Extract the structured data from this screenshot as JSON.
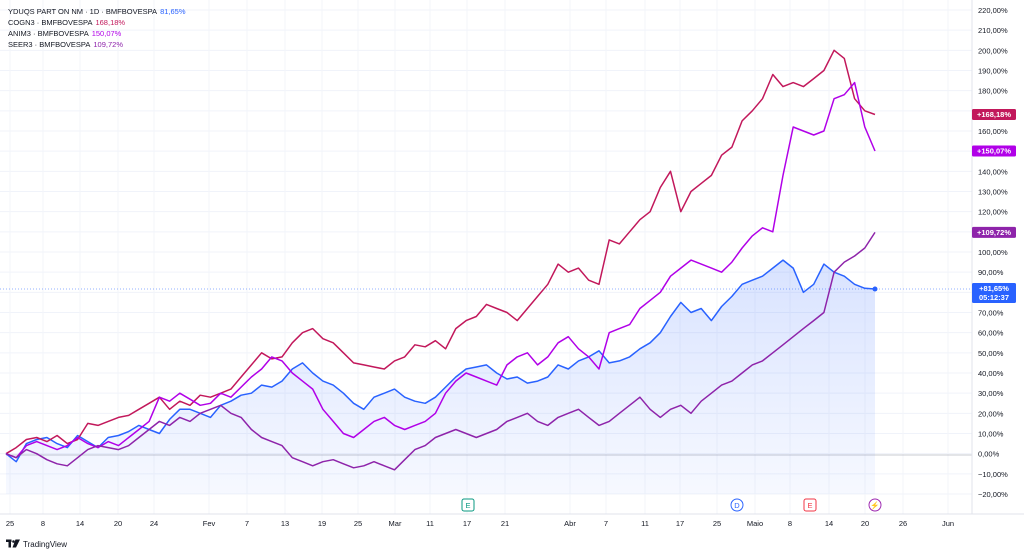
{
  "legend": [
    {
      "symbol": "YDUQS PART ON NM · 1D · BMFBOVESPA",
      "value": "81,65%",
      "color": "#2962ff"
    },
    {
      "symbol": "COGN3 · BMFBOVESPA",
      "value": "168,18%",
      "color": "#c2185b"
    },
    {
      "symbol": "ANIM3 · BMFBOVESPA",
      "value": "150,07%",
      "color": "#b100e8"
    },
    {
      "symbol": "SEER3 · BMFBOVESPA",
      "value": "109,72%",
      "color": "#8e24aa"
    }
  ],
  "price_tags": [
    {
      "label": "+168,18%",
      "value": 168.18,
      "color": "#c2185b"
    },
    {
      "label": "+150,07%",
      "value": 150.07,
      "color": "#b100e8"
    },
    {
      "label": "+109,72%",
      "value": 109.72,
      "color": "#8e24aa"
    },
    {
      "label": "+81,65%",
      "sub": "05:12:37",
      "value": 81.65,
      "color": "#2962ff"
    }
  ],
  "event_markers": [
    {
      "letter": "E",
      "date": "17",
      "color": "#089981"
    },
    {
      "letter": "D",
      "date": "25",
      "color": "#2962ff"
    },
    {
      "letter": "E",
      "date": "12",
      "color": "#f23645"
    },
    {
      "letter": "⚡",
      "date": "20",
      "color": "#9c27b0"
    }
  ],
  "footer": {
    "brand": "TradingView"
  },
  "chart_data": {
    "type": "line",
    "ylim": [
      -25,
      225
    ],
    "y_ticks": [
      "220,00%",
      "210,00%",
      "200,00%",
      "190,00%",
      "180,00%",
      "170,00%",
      "160,00%",
      "150,00%",
      "140,00%",
      "130,00%",
      "120,00%",
      "110,00%",
      "100,00%",
      "90,00%",
      "80,00%",
      "70,00%",
      "60,00%",
      "50,00%",
      "40,00%",
      "30,00%",
      "20,00%",
      "10,00%",
      "0,00%",
      "−10,00%",
      "−20,00%"
    ],
    "x_ticks": [
      "25",
      "8",
      "14",
      "20",
      "24",
      "Fev",
      "7",
      "13",
      "19",
      "25",
      "Mar",
      "11",
      "17",
      "21",
      "Abr",
      "7",
      "11",
      "17",
      "25",
      "Maio",
      "8",
      "14",
      "20",
      "26",
      "Jun"
    ],
    "series": [
      {
        "name": "YDUQS PART ON NM",
        "color": "#2962ff",
        "area": true,
        "values": [
          0,
          -4,
          5,
          7,
          8,
          5,
          3,
          9,
          6,
          3,
          8,
          9,
          11,
          14,
          12,
          10,
          17,
          22,
          22,
          20,
          18,
          24,
          26,
          29,
          30,
          34,
          33,
          36,
          42,
          45,
          40,
          36,
          34,
          30,
          25,
          22,
          28,
          30,
          32,
          28,
          26,
          25,
          28,
          33,
          38,
          42,
          43,
          44,
          40,
          37,
          38,
          35,
          36,
          38,
          44,
          42,
          46,
          48,
          51,
          45,
          46,
          48,
          52,
          55,
          60,
          68,
          75,
          70,
          72,
          66,
          73,
          78,
          84,
          86,
          88,
          92,
          96,
          92,
          80,
          84,
          94,
          90,
          88,
          84,
          82,
          81.65
        ]
      },
      {
        "name": "COGN3",
        "color": "#c2185b",
        "area": false,
        "values": [
          0,
          3,
          7,
          8,
          6,
          9,
          5,
          7,
          15,
          14,
          16,
          18,
          19,
          22,
          25,
          28,
          22,
          26,
          24,
          29,
          28,
          30,
          32,
          38,
          44,
          50,
          47,
          48,
          55,
          60,
          62,
          57,
          55,
          50,
          45,
          44,
          43,
          42,
          46,
          48,
          54,
          53,
          56,
          52,
          62,
          66,
          68,
          74,
          72,
          70,
          66,
          72,
          78,
          84,
          94,
          90,
          92,
          86,
          84,
          106,
          104,
          110,
          116,
          120,
          132,
          140,
          120,
          130,
          134,
          138,
          148,
          152,
          165,
          170,
          176,
          188,
          182,
          184,
          182,
          186,
          190,
          200,
          196,
          176,
          170,
          168.18
        ]
      },
      {
        "name": "ANIM3",
        "color": "#b100e8",
        "area": false,
        "values": [
          0,
          -2,
          4,
          6,
          4,
          2,
          4,
          8,
          5,
          3,
          6,
          4,
          8,
          12,
          16,
          28,
          26,
          30,
          27,
          24,
          25,
          30,
          28,
          33,
          38,
          42,
          48,
          46,
          40,
          36,
          32,
          22,
          16,
          10,
          8,
          12,
          16,
          18,
          14,
          12,
          14,
          16,
          20,
          30,
          36,
          40,
          38,
          36,
          34,
          44,
          48,
          50,
          44,
          48,
          55,
          58,
          52,
          48,
          42,
          60,
          62,
          64,
          72,
          76,
          80,
          88,
          92,
          96,
          94,
          92,
          90,
          95,
          102,
          108,
          112,
          110,
          138,
          162,
          160,
          158,
          160,
          176,
          178,
          184,
          162,
          150.07
        ]
      },
      {
        "name": "SEER3",
        "color": "#8e24aa",
        "area": false,
        "values": [
          0,
          -2,
          2,
          0,
          -3,
          -5,
          -6,
          -2,
          2,
          4,
          3,
          2,
          4,
          8,
          12,
          16,
          14,
          18,
          16,
          20,
          22,
          24,
          20,
          18,
          12,
          8,
          6,
          4,
          -2,
          -4,
          -6,
          -4,
          -3,
          -5,
          -7,
          -6,
          -4,
          -6,
          -8,
          -3,
          2,
          4,
          8,
          10,
          12,
          10,
          8,
          10,
          12,
          16,
          18,
          20,
          16,
          14,
          18,
          20,
          22,
          18,
          14,
          16,
          20,
          24,
          28,
          22,
          18,
          22,
          24,
          20,
          26,
          30,
          34,
          36,
          40,
          44,
          46,
          50,
          54,
          58,
          62,
          66,
          70,
          90,
          95,
          98,
          102,
          109.72
        ]
      }
    ]
  }
}
